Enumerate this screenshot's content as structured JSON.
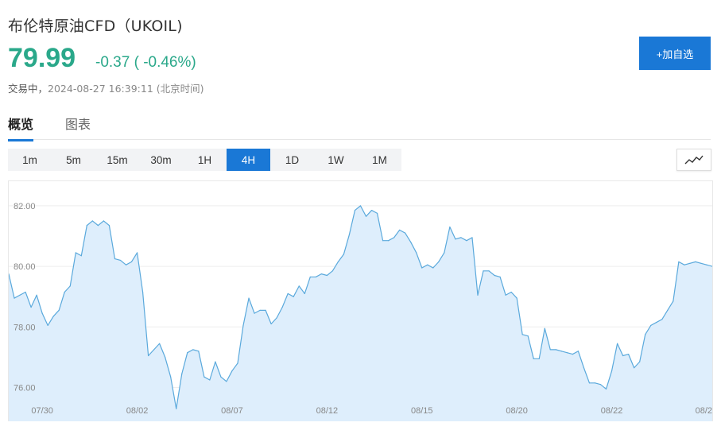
{
  "header": {
    "title": "布伦特原油CFD（UKOIL)",
    "price": "79.99",
    "change": "-0.37 ( -0.46%)",
    "status": "交易中，",
    "timestamp": "2024-08-27 16:39:11 (北京时间)",
    "watch_label": "+加自选"
  },
  "tabs": [
    {
      "label": "概览",
      "active": true
    },
    {
      "label": "图表",
      "active": false
    }
  ],
  "intervals": [
    {
      "label": "1m",
      "active": false
    },
    {
      "label": "5m",
      "active": false
    },
    {
      "label": "15m",
      "active": false
    },
    {
      "label": "30m",
      "active": false
    },
    {
      "label": "1H",
      "active": false
    },
    {
      "label": "4H",
      "active": true
    },
    {
      "label": "1D",
      "active": false
    },
    {
      "label": "1W",
      "active": false
    },
    {
      "label": "1M",
      "active": false
    }
  ],
  "chart_type_icon": "line-chart-icon",
  "colors": {
    "accent": "#1a78d6",
    "up_down": "#2aa88a",
    "line": "#5aa9dc",
    "fill": "#deeefc"
  },
  "chart_data": {
    "type": "area",
    "ylim": [
      75.2,
      82.6
    ],
    "yticks": [
      "82.00",
      "80.00",
      "78.00",
      "76.00"
    ],
    "ytick_values": [
      82,
      80,
      78,
      76
    ],
    "xticks": [
      "07/30",
      "08/02",
      "08/07",
      "08/12",
      "08/15",
      "08/20",
      "08/22",
      "08/2"
    ],
    "xtick_index": [
      6,
      23,
      40,
      57,
      74,
      91,
      108,
      125
    ],
    "values": [
      79.75,
      78.95,
      79.05,
      79.15,
      78.65,
      79.05,
      78.45,
      78.05,
      78.35,
      78.55,
      79.15,
      79.35,
      80.45,
      80.35,
      81.35,
      81.5,
      81.35,
      81.5,
      81.35,
      80.25,
      80.2,
      80.05,
      80.15,
      80.45,
      79.15,
      77.05,
      77.25,
      77.45,
      77.0,
      76.35,
      75.3,
      76.45,
      77.15,
      77.25,
      77.2,
      76.35,
      76.25,
      76.85,
      76.35,
      76.2,
      76.55,
      76.8,
      78.05,
      78.95,
      78.45,
      78.55,
      78.55,
      78.1,
      78.3,
      78.65,
      79.1,
      79.0,
      79.35,
      79.1,
      79.65,
      79.65,
      79.75,
      79.7,
      79.85,
      80.15,
      80.4,
      81.05,
      81.85,
      82.0,
      81.65,
      81.85,
      81.75,
      80.85,
      80.85,
      80.95,
      81.2,
      81.1,
      80.8,
      80.45,
      79.95,
      80.05,
      79.95,
      80.15,
      80.45,
      81.3,
      80.9,
      80.95,
      80.85,
      80.95,
      79.05,
      79.85,
      79.85,
      79.7,
      79.65,
      79.05,
      79.15,
      78.95,
      77.75,
      77.7,
      76.95,
      76.95,
      77.95,
      77.25,
      77.25,
      77.2,
      77.15,
      77.1,
      77.2,
      76.65,
      76.15,
      76.15,
      76.1,
      75.95,
      76.55,
      77.45,
      77.05,
      77.1,
      76.65,
      76.85,
      77.75,
      78.05,
      78.15,
      78.25,
      78.55,
      78.85,
      80.15,
      80.05,
      80.1,
      80.15,
      80.1,
      80.05,
      80.0
    ]
  }
}
